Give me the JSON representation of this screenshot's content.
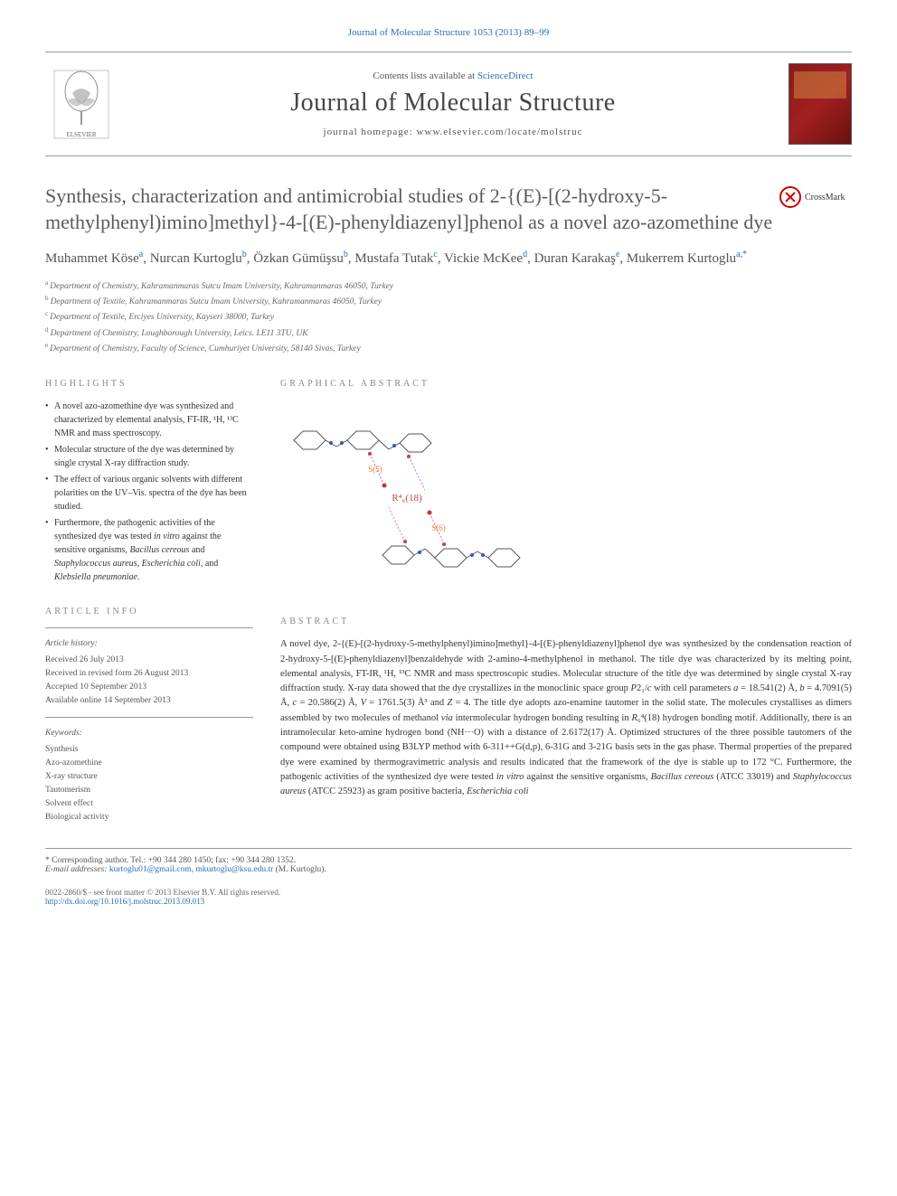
{
  "top_link": "Journal of Molecular Structure 1053 (2013) 89–99",
  "header": {
    "contents_prefix": "Contents lists available at ",
    "contents_link": "ScienceDirect",
    "journal_title": "Journal of Molecular Structure",
    "homepage_prefix": "journal homepage: ",
    "homepage_url": "www.elsevier.com/locate/molstruc"
  },
  "crossmark_label": "CrossMark",
  "article_title": "Synthesis, characterization and antimicrobial studies of 2-{(E)-[(2-hydroxy-5-methylphenyl)imino]methyl}-4-[(E)-phenyldiazenyl]phenol as a novel azo-azomethine dye",
  "authors": [
    {
      "name": "Muhammet Köse",
      "sup": "a"
    },
    {
      "name": "Nurcan Kurtoglu",
      "sup": "b"
    },
    {
      "name": "Özkan Gümüşsu",
      "sup": "b"
    },
    {
      "name": "Mustafa Tutak",
      "sup": "c"
    },
    {
      "name": "Vickie McKee",
      "sup": "d"
    },
    {
      "name": "Duran Karakaş",
      "sup": "e"
    },
    {
      "name": "Mukerrem Kurtoglu",
      "sup": "a,*"
    }
  ],
  "affiliations": [
    {
      "sup": "a",
      "text": "Department of Chemistry, Kahramanmaras Sutcu Imam University, Kahramanmaras 46050, Turkey"
    },
    {
      "sup": "b",
      "text": "Department of Textile, Kahramanmaras Sutcu Imam University, Kahramanmaras 46050, Turkey"
    },
    {
      "sup": "c",
      "text": "Department of Textile, Erciyes University, Kayseri 38000, Turkey"
    },
    {
      "sup": "d",
      "text": "Department of Chemistry, Loughborough University, Leics. LE11 3TU, UK"
    },
    {
      "sup": "e",
      "text": "Department of Chemistry, Faculty of Science, Cumhuriyet University, 58140 Sivas, Turkey"
    }
  ],
  "headings": {
    "highlights": "HIGHLIGHTS",
    "graphical": "GRAPHICAL ABSTRACT",
    "article_info": "ARTICLE INFO",
    "abstract": "ABSTRACT"
  },
  "highlights": [
    "A novel azo-azomethine dye was synthesized and characterized by elemental analysis, FT-IR, ¹H, ¹³C NMR and mass spectroscopy.",
    "Molecular structure of the dye was determined by single crystal X-ray diffraction study.",
    "The effect of various organic solvents with different polarities on the UV–Vis. spectra of the dye has been studied.",
    "Furthermore, the pathogenic activities of the synthesized dye was tested in vitro against the sensitive organisms, Bacillus cereous and Staphylococcus aureus, Escherichia coli, and Klebsiella pneumoniae."
  ],
  "article_info": {
    "history_label": "Article history:",
    "history": [
      "Received 26 July 2013",
      "Received in revised form 26 August 2013",
      "Accepted 10 September 2013",
      "Available online 14 September 2013"
    ],
    "keywords_label": "Keywords:",
    "keywords": [
      "Synthesis",
      "Azo-azomethine",
      "X-ray structure",
      "Tautomerism",
      "Solvent effect",
      "Biological activity"
    ]
  },
  "abstract": "A novel dye, 2-{(E)-[(2-hydroxy-5-methylphenyl)imino]methyl}-4-[(E)-phenyldiazenyl]phenol dye was synthesized by the condensation reaction of 2-hydroxy-5-[(E)-phenyldiazenyl]benzaldehyde with 2-amino-4-methylphenol in methanol. The title dye was characterized by its melting point, elemental analysis, FT-IR, ¹H, ¹³C NMR and mass spectroscopic studies. Molecular structure of the title dye was determined by single crystal X-ray diffraction study. X-ray data showed that the dye crystallizes in the monoclinic space group P2₁/c with cell parameters a = 18.541(2) Å, b = 4.7091(5) Å, c = 20.586(2) Å, V = 1761.5(3) Å³ and Z = 4. The title dye adopts azo-enamine tautomer in the solid state. The molecules crystallises as dimers assembled by two molecules of methanol via intermolecular hydrogen bonding resulting in R₆⁴(18) hydrogen bonding motif. Additionally, there is an intramolecular keto-amine hydrogen bond (NH···O) with a distance of 2.6172(17) Å. Optimized structures of the three possible tautomers of the compound were obtained using B3LYP method with 6-311++G(d,p), 6-31G and 3-21G basis sets in the gas phase. Thermal properties of the prepared dye were examined by thermogravimetric analysis and results indicated that the framework of the dye is stable up to 172 °C. Furthermore, the pathogenic activities of the synthesized dye were tested in vitro against the sensitive organisms, Bacillus cereous (ATCC 33019) and Staphylococcus aureus (ATCC 25923) as gram positive bacteria, Escherichia coli",
  "footer": {
    "corr_label": "* Corresponding author. Tel.: +90 344 280 1450; fax: +90 344 280 1352.",
    "email_label": "E-mail addresses: ",
    "email1": "kurtoglu01@gmail.com",
    "email2": "mkurtoglu@ksu.edu.tr",
    "email_author": " (M. Kurtoglu).",
    "copyright_line1": "0022-2860/$ - see front matter © 2013 Elsevier B.V. All rights reserved.",
    "doi": "http://dx.doi.org/10.1016/j.molstruc.2013.09.013"
  },
  "graphical_abstract": {
    "type": "molecular-diagram",
    "description": "Dimer molecular structure with two phenyl-azo-phenol-imine-methylphenol units connected by methanol bridges; central R4_6(18) label",
    "center_label": "R⁴₆(18)",
    "center_label_color": "#c44",
    "atom_colors": {
      "carbon": "#666666",
      "nitrogen": "#3355cc",
      "oxygen": "#cc3333",
      "hydrogen_bond": "#cc66cc"
    },
    "bond_color": "#555555",
    "label_s5": "S(5)",
    "label_s6": "S(6)"
  },
  "colors": {
    "link": "#2a6fb5",
    "heading": "#888888",
    "title": "#5a5a5a",
    "body_text": "#333333",
    "divider": "#999999"
  }
}
